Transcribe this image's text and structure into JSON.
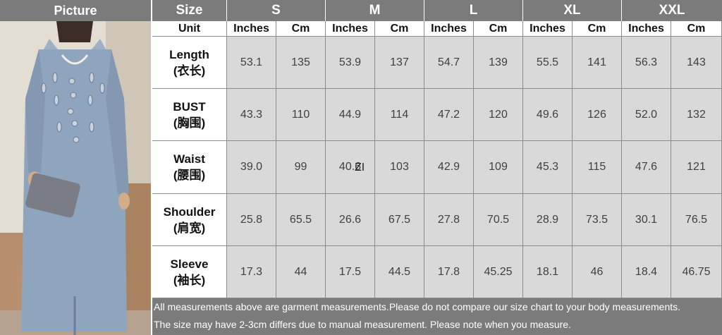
{
  "header": {
    "picture_label": "Picture",
    "size_label": "Size",
    "sizes": [
      "S",
      "M",
      "L",
      "XL",
      "XXL"
    ]
  },
  "units_row": {
    "label": "Unit",
    "inches": "Inches",
    "cm": "Cm"
  },
  "rows": [
    {
      "en": "Length",
      "zh": "(衣长)",
      "values": [
        "53.1",
        "135",
        "53.9",
        "137",
        "54.7",
        "139",
        "55.5",
        "141",
        "56.3",
        "143"
      ]
    },
    {
      "en": "BUST",
      "zh": "(胸围)",
      "values": [
        "43.3",
        "110",
        "44.9",
        "114",
        "47.2",
        "120",
        "49.6",
        "126",
        "52.0",
        "132"
      ]
    },
    {
      "en": "Waist",
      "zh": "(腰围)",
      "values": [
        "39.0",
        "99",
        "40.6",
        "103",
        "42.9",
        "109",
        "45.3",
        "115",
        "47.6",
        "121"
      ]
    },
    {
      "en": "Shoulder",
      "zh": "(肩宽)",
      "values": [
        "25.8",
        "65.5",
        "26.6",
        "67.5",
        "27.8",
        "70.5",
        "28.9",
        "73.5",
        "30.1",
        "76.5"
      ]
    },
    {
      "en": "Sleeve",
      "zh": "(袖长)",
      "values": [
        "17.3",
        "44",
        "17.5",
        "44.5",
        "17.8",
        "45.25",
        "18.1",
        "46",
        "18.4",
        "46.75"
      ]
    }
  ],
  "notes": [
    "All measurements above are garment measurements.Please do not compare our size chart to your body measurements.",
    "The size may have 2-3cm differs due to manual measurement. Please note when you measure."
  ],
  "stray_mark": "ZI",
  "colors": {
    "header_bg": "#7b7b7b",
    "value_bg": "#d9d9d9",
    "dress": "#8fa4bd"
  }
}
